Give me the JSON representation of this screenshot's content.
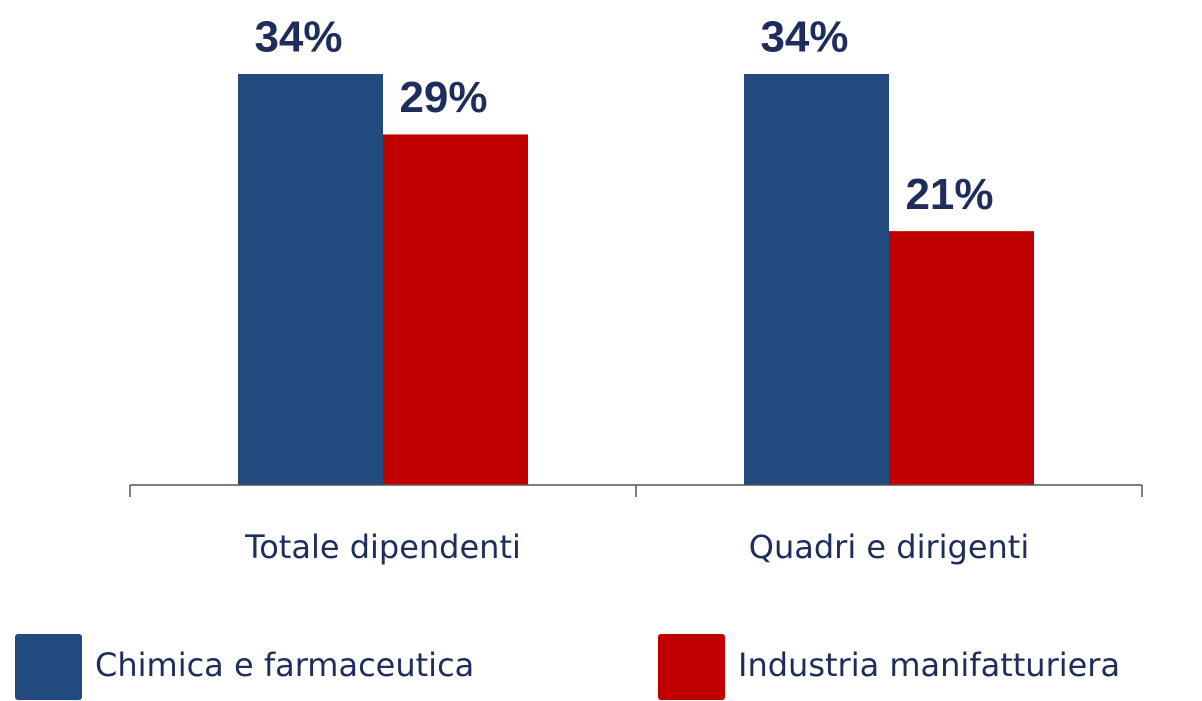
{
  "chart_data": {
    "type": "bar",
    "categories": [
      "Totale dipendenti",
      "Quadri e dirigenti"
    ],
    "series": [
      {
        "name": "Chimica e farmaceutica",
        "color": "#234a7e",
        "values": [
          34,
          34
        ],
        "value_labels": [
          "34%",
          "34%"
        ]
      },
      {
        "name": "Industria manifatturiera",
        "color": "#c00000",
        "values": [
          29,
          21
        ],
        "value_labels": [
          "29%",
          "21%"
        ]
      }
    ]
  }
}
